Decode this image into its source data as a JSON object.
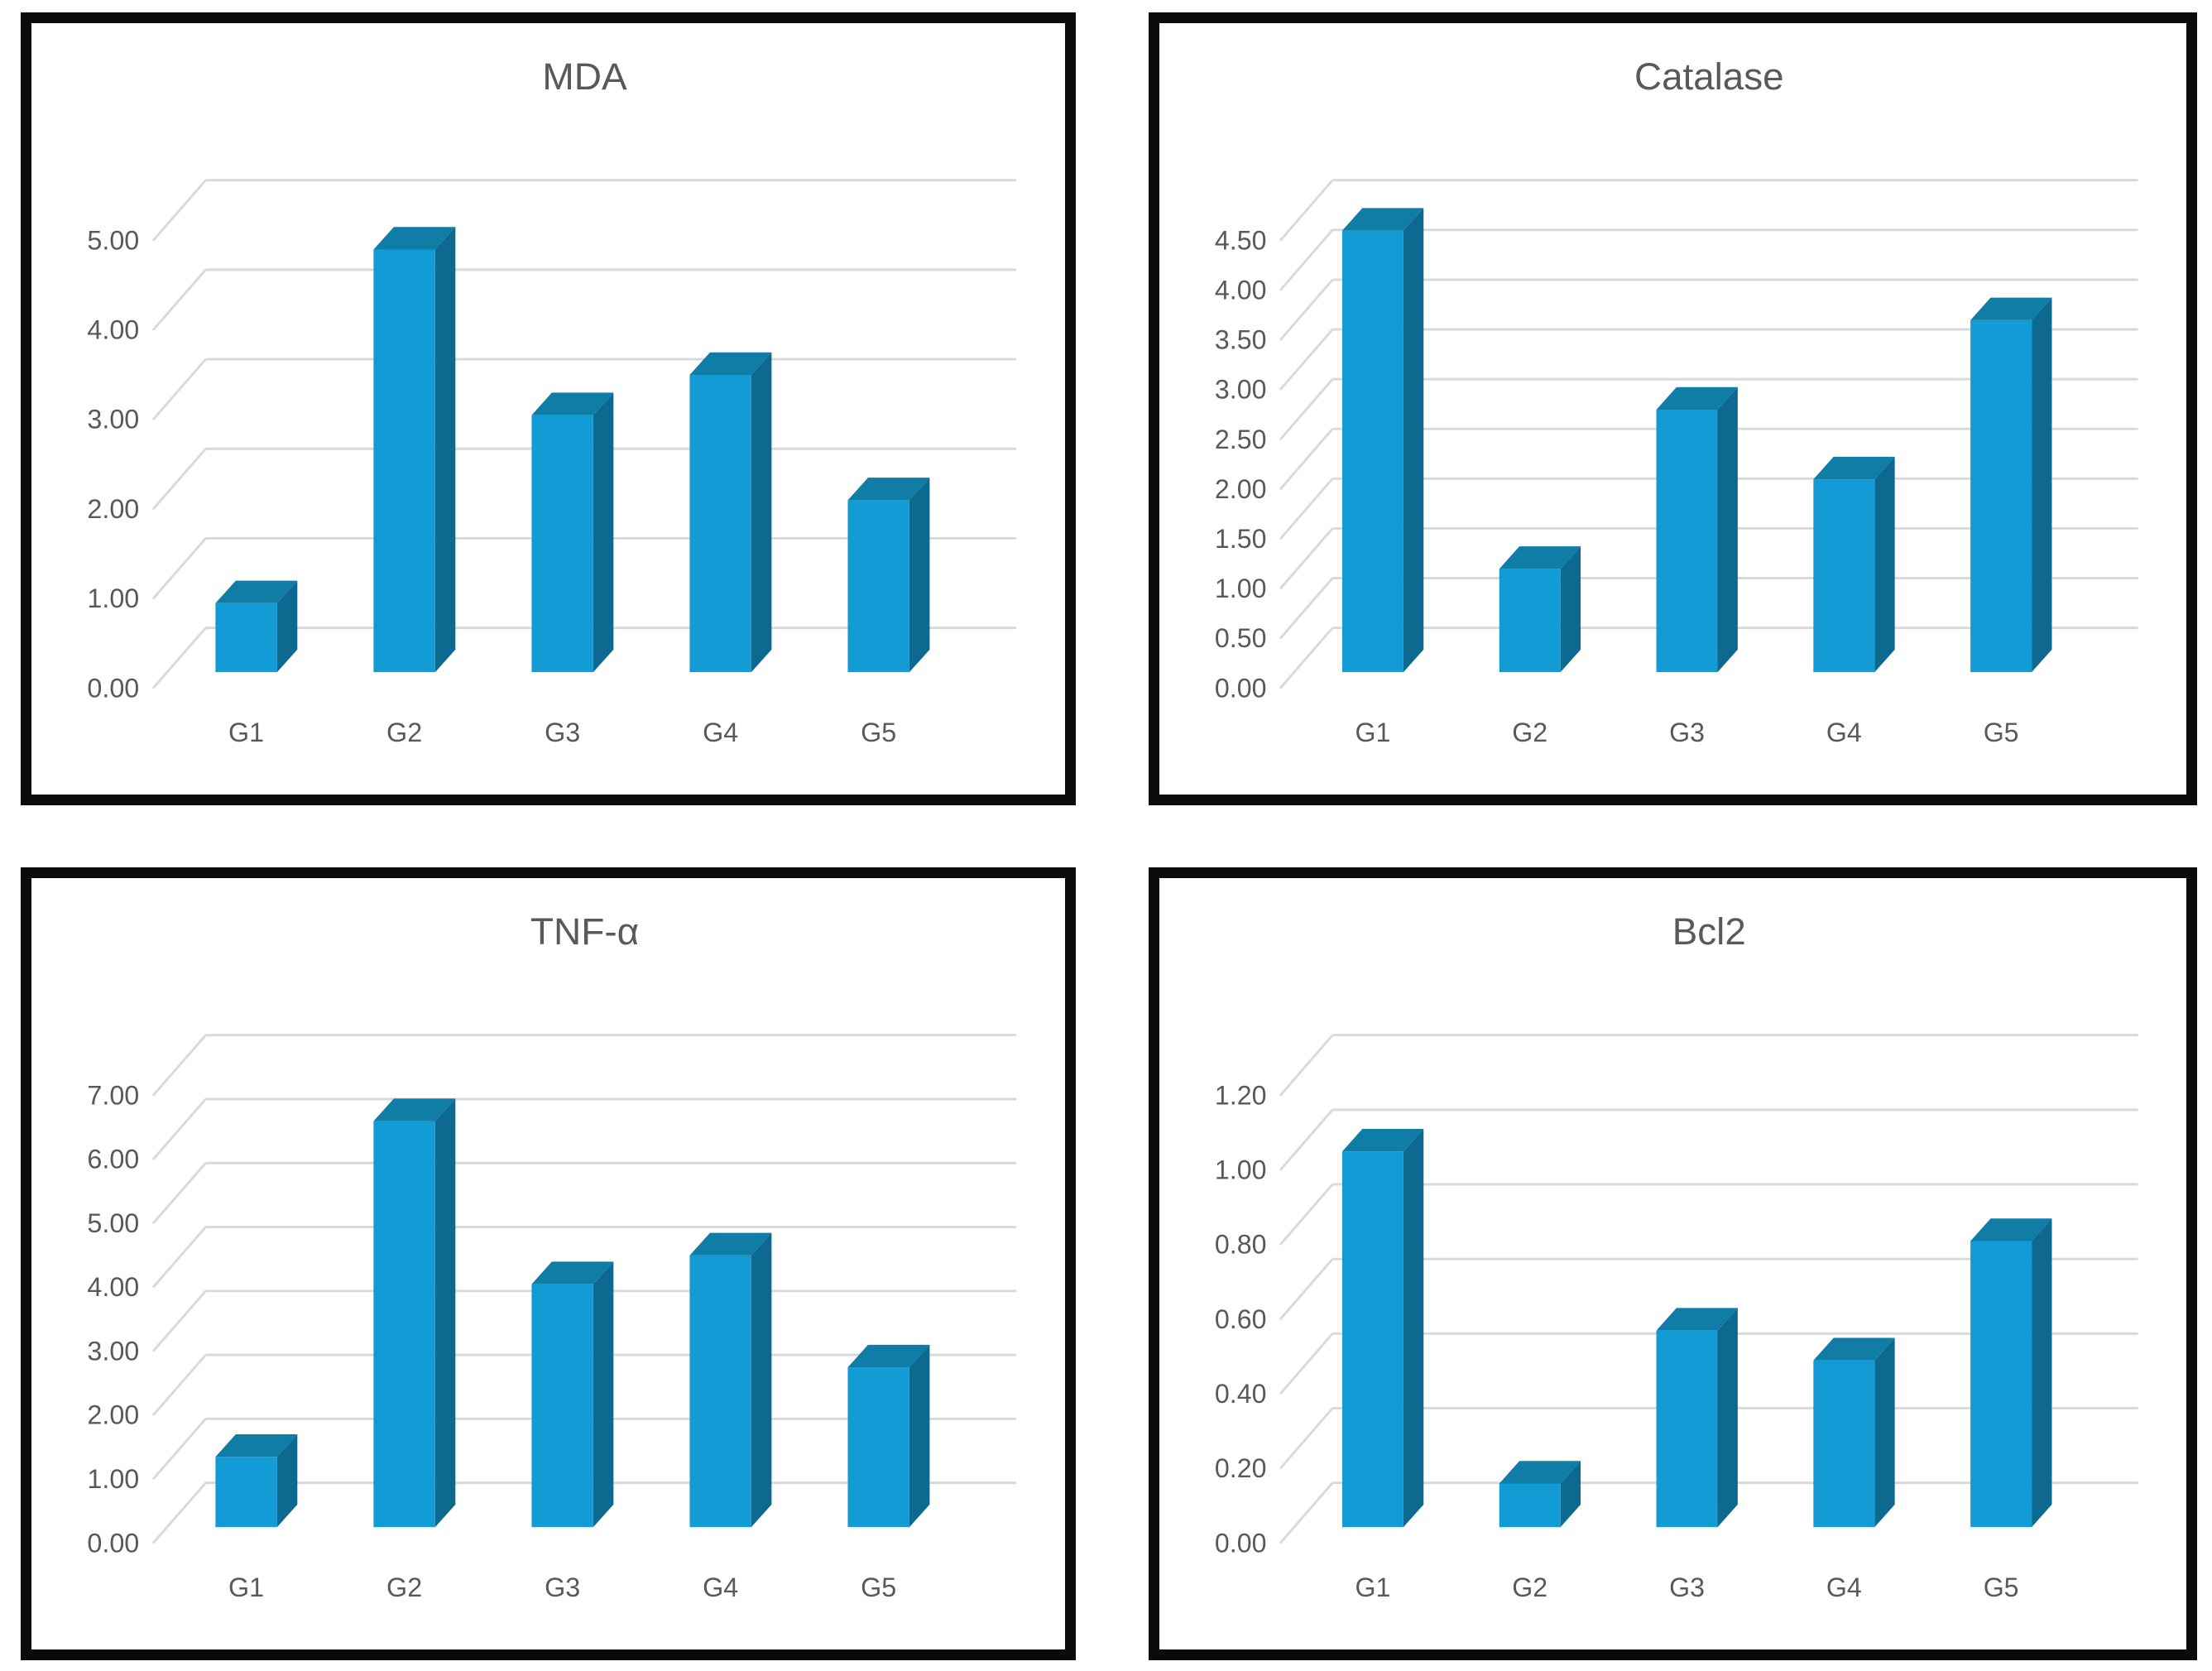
{
  "page": {
    "background": "#ffffff",
    "description": "Four 3D column charts in a 2x2 grid, each in a thick black frame"
  },
  "colors": {
    "bar_front": "#129BD5",
    "bar_top": "#0F7DA6",
    "bar_side": "#0D6990",
    "gridline": "#D9D9D9",
    "axis_text": "#595959",
    "title_text": "#595959",
    "frame": "#0b0b0b",
    "background": "#ffffff"
  },
  "chart_data": [
    {
      "type": "bar",
      "style": "3d-column",
      "title": "MDA",
      "categories": [
        "G1",
        "G2",
        "G3",
        "G4",
        "G5"
      ],
      "values": [
        0.95,
        4.9,
        3.05,
        3.5,
        2.1
      ],
      "xlabel": "",
      "ylabel": "",
      "ylim": [
        0,
        5
      ],
      "ytick_step": 1.0,
      "yticks": [
        "0.00",
        "1.00",
        "2.00",
        "3.00",
        "4.00",
        "5.00"
      ],
      "grid": true,
      "legend": null
    },
    {
      "type": "bar",
      "style": "3d-column",
      "title": "Catalase",
      "categories": [
        "G1",
        "G2",
        "G3",
        "G4",
        "G5"
      ],
      "values": [
        4.6,
        1.2,
        2.8,
        2.1,
        3.7
      ],
      "xlabel": "",
      "ylabel": "",
      "ylim": [
        0,
        4.5
      ],
      "ytick_step": 0.5,
      "yticks": [
        "0.00",
        "0.50",
        "1.00",
        "1.50",
        "2.00",
        "2.50",
        "3.00",
        "3.50",
        "4.00",
        "4.50"
      ],
      "grid": true,
      "legend": null
    },
    {
      "type": "bar",
      "style": "3d-column",
      "title": "TNF-α",
      "categories": [
        "G1",
        "G2",
        "G3",
        "G4",
        "G5"
      ],
      "values": [
        1.35,
        6.6,
        4.05,
        4.5,
        2.75
      ],
      "xlabel": "",
      "ylabel": "",
      "ylim": [
        0,
        7
      ],
      "ytick_step": 1.0,
      "yticks": [
        "0.00",
        "1.00",
        "2.00",
        "3.00",
        "4.00",
        "5.00",
        "6.00",
        "7.00"
      ],
      "grid": true,
      "legend": null
    },
    {
      "type": "bar",
      "style": "3d-column",
      "title": "Bcl2",
      "categories": [
        "G1",
        "G2",
        "G3",
        "G4",
        "G5"
      ],
      "values": [
        1.05,
        0.16,
        0.57,
        0.49,
        0.81
      ],
      "xlabel": "",
      "ylabel": "",
      "ylim": [
        0,
        1.2
      ],
      "ytick_step": 0.2,
      "yticks": [
        "0.00",
        "0.20",
        "0.40",
        "0.60",
        "0.80",
        "1.00",
        "1.20"
      ],
      "grid": true,
      "legend": null
    }
  ]
}
